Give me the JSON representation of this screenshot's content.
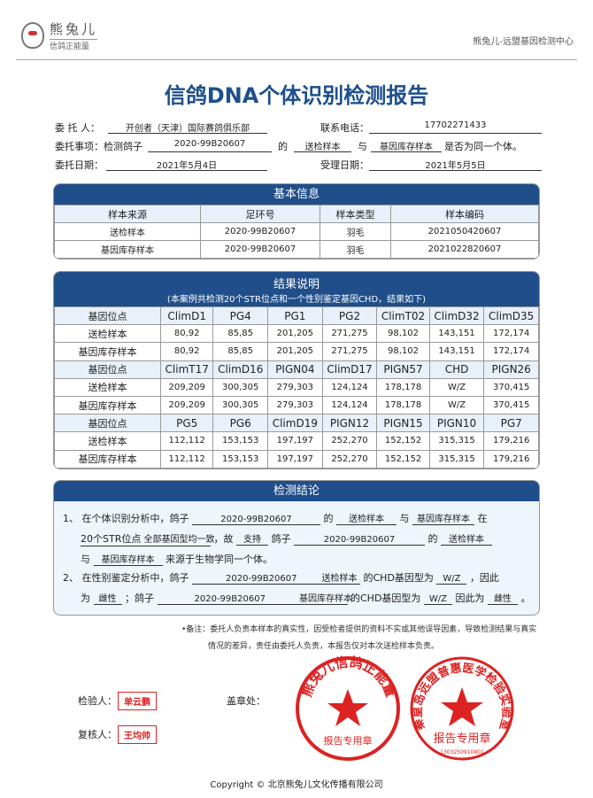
{
  "header": {
    "logo_name": "熊兔儿",
    "logo_slogan": "信鸽正能量",
    "center_name": "熊兔儿-远盟基因检测中心"
  },
  "title": "信鸽DNA个体识别检测报告",
  "client": {
    "client_label": "委 托 人：",
    "client_value": "开创者（天津）国际赛鸽俱乐部",
    "phone_label": "联系电话：",
    "phone_value": "17702271433",
    "matter_label": "委托事项：检测鸽子",
    "matter_ring": "2020-99B20607",
    "matter_of": "的",
    "matter_sample1": "送检样本",
    "matter_and": "与",
    "matter_sample2": "基因库存样本",
    "matter_tail": "是否为同一个体。",
    "date_label": "委托日期：",
    "date_value": "2021年5月4日",
    "accept_label": "受理日期：",
    "accept_value": "2021年5月5日"
  },
  "basic": {
    "title": "基本信息",
    "headers": [
      "样本来源",
      "足环号",
      "样本类型",
      "样本编码"
    ],
    "rows": [
      [
        "送检样本",
        "2020-99B20607",
        "羽毛",
        "2021050420607"
      ],
      [
        "基因库存样本",
        "2020-99B20607",
        "羽毛",
        "2021022820607"
      ]
    ]
  },
  "results": {
    "title": "结果说明",
    "subtitle": "(本案例共检测20个STR位点和一个性别鉴定基因CHD，结果如下)",
    "groups": [
      {
        "loci": [
          "基因位点",
          "ClimD1",
          "PG4",
          "PG1",
          "PG2",
          "ClimT02",
          "ClimD32",
          "ClimD35"
        ],
        "sample": [
          "送检样本",
          "80,92",
          "85,85",
          "201,205",
          "271,275",
          "98,102",
          "143,151",
          "172,174"
        ],
        "bank": [
          "基因库存样本",
          "80,92",
          "85,85",
          "201,205",
          "271,275",
          "98,102",
          "143,151",
          "172,174"
        ]
      },
      {
        "loci": [
          "基因位点",
          "ClimT17",
          "ClimD16",
          "PIGN04",
          "ClimD17",
          "PIGN57",
          "CHD",
          "PIGN26"
        ],
        "sample": [
          "送检样本",
          "209,209",
          "300,305",
          "279,303",
          "124,124",
          "178,178",
          "W/Z",
          "370,415"
        ],
        "bank": [
          "基因库存样本",
          "209,209",
          "300,305",
          "279,303",
          "124,124",
          "178,178",
          "W/Z",
          "370,415"
        ]
      },
      {
        "loci": [
          "基因位点",
          "PG5",
          "PG6",
          "ClimD19",
          "PIGN12",
          "PIGN15",
          "PIGN10",
          "PG7"
        ],
        "sample": [
          "送检样本",
          "112,112",
          "153,153",
          "197,197",
          "252,270",
          "152,152",
          "315,315",
          "179,216"
        ],
        "bank": [
          "基因库存样本",
          "112,112",
          "153,153",
          "197,197",
          "252,270",
          "152,152",
          "315,315",
          "179,216"
        ]
      }
    ]
  },
  "conclusion": {
    "title": "检测结论",
    "l1a": "1、 在个体识别分析中，鸽子",
    "ring": "2020-99B20607",
    "of": "的",
    "s1": "送检样本",
    "and": "与",
    "s2": "基因库存样本",
    "at": "在",
    "l2a": "20个STR位点",
    "l2b": "全部基因型均一致",
    "l2c": "，故",
    "support": "支持",
    "l2d": "鸽子",
    "l2of": "的",
    "l3a": "与",
    "l3b": "来源于生物学同一个体。",
    "l4a": "2、 在性别鉴定分析中，鸽子",
    "chd": "的CHD基因型为",
    "wz": "W/Z",
    "therefore": "，因此",
    "l5a": "为",
    "sex": "雌性",
    "l5b": "；鸽子",
    "chd2": "的CHD基因型为",
    "therefore2": "因此为",
    "end": "。"
  },
  "note": {
    "line1": "•备注：委托人负责本样本的真实性，因受检者提供的资料不实或其他误导因素，导致检测结果与真实",
    "line2": "情况的差异，责任由委托人负责，本报告仅对本次送检样本负责。"
  },
  "signatures": {
    "inspector_label": "检验人：",
    "inspector": "单云鹏",
    "reviewer_label": "复核人：",
    "reviewer": "王均帅",
    "stamp_label": "盖章处："
  },
  "seals": [
    {
      "ring_text": "熊兔儿信鸽正能量",
      "center_text": "报告专用章"
    },
    {
      "ring_text": "秦皇岛远盟普惠医学检验实验室",
      "center_text": "报告专用章",
      "number": "1303250910801"
    }
  ],
  "copyright": "Copyright © 北京熊兔儿文化传播有限公司",
  "colors": {
    "primary": "#1f4e8a",
    "seal": "#d22222",
    "header_cell": "#e8f1f9"
  }
}
